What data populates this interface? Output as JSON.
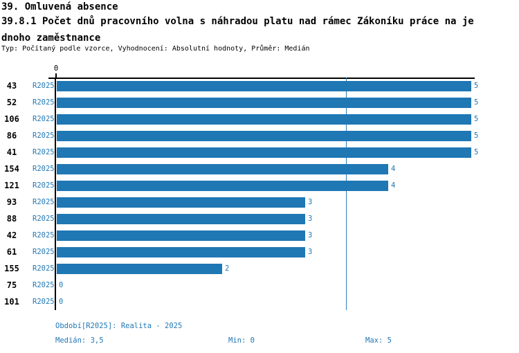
{
  "header": {
    "title": "39. Omluvená absence",
    "subtitle_line1": "39.8.1 Počet dnů pracovního volna s náhradou platu nad rámec Zákoníku práce na je",
    "subtitle_line2": "dnoho zaměstnance",
    "meta": "Typ: Počítaný podle vzorce, Vyhodnocení: Absolutní hodnoty, Průměr: Medián"
  },
  "chart_data": {
    "type": "bar",
    "orientation": "horizontal",
    "title": "39.8.1 Počet dnů pracovního volna s náhradou platu nad rámec Zákoníku práce na jednoho zaměstnance",
    "categories": [
      "43",
      "52",
      "106",
      "86",
      "41",
      "154",
      "121",
      "93",
      "88",
      "42",
      "61",
      "155",
      "75",
      "101"
    ],
    "series": [
      {
        "name": "R2025",
        "values": [
          5,
          5,
          5,
          5,
          5,
          4,
          4,
          3,
          3,
          3,
          3,
          2,
          0,
          0
        ]
      }
    ],
    "value_labels": [
      "5",
      "5",
      "5",
      "5",
      "5",
      "4",
      "4",
      "3",
      "3",
      "3",
      "3",
      "2",
      "0",
      "0"
    ],
    "xlim": [
      0,
      5
    ],
    "x_tick_labels": [
      "0"
    ],
    "median_value": 3.5,
    "grid": false,
    "legend_position": "none",
    "bar_color": "#1f77b4",
    "median_line_color": "#2f7fb8",
    "axis_color": "#000000"
  },
  "footer": {
    "period": "Období[R2025]: Realita - 2025",
    "median": "Medián: 3,5",
    "min": "Min: 0",
    "max": "Max: 5"
  }
}
